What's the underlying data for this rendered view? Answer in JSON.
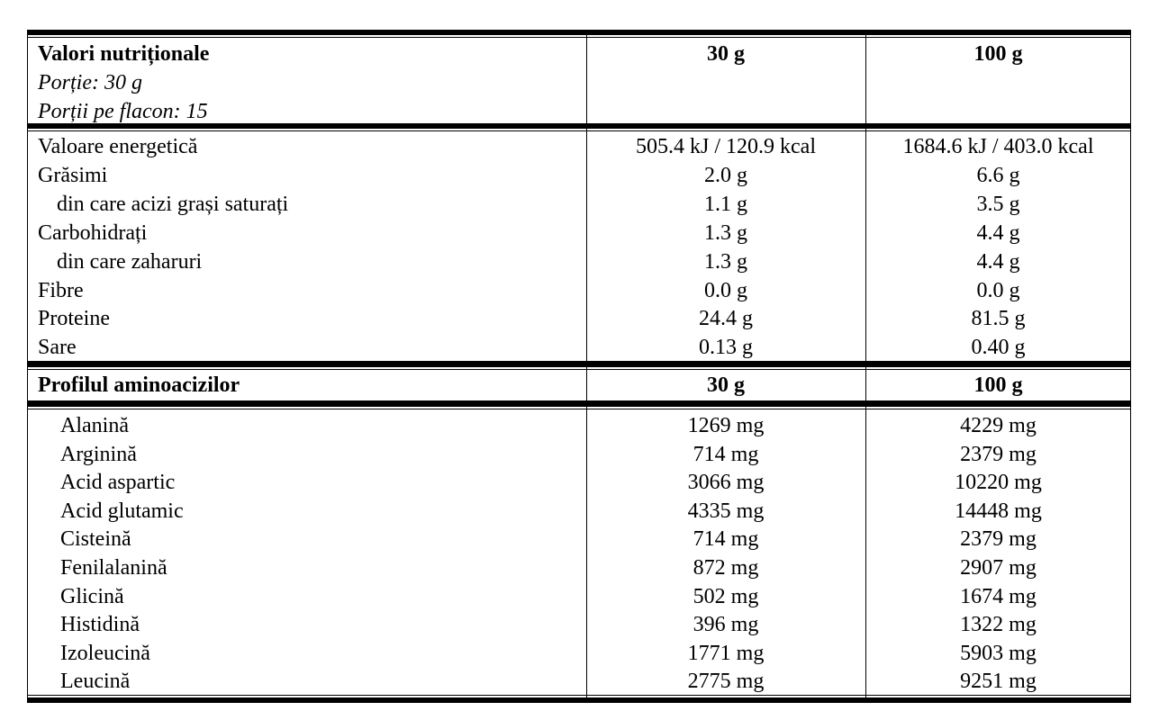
{
  "nutrition": {
    "title": "Valori nutriționale",
    "serving": "Porție: 30 g",
    "servings_per_container": "Porții pe flacon: 15",
    "col_30": "30 g",
    "col_100": "100 g",
    "rows": [
      {
        "name": "Valoare energetică",
        "v30": "505.4 kJ / 120.9 kcal",
        "v100": "1684.6 kJ / 403.0 kcal",
        "indent": false
      },
      {
        "name": "Grăsimi",
        "v30": "2.0 g",
        "v100": "6.6 g",
        "indent": false
      },
      {
        "name": "din care acizi grași saturați",
        "v30": "1.1 g",
        "v100": "3.5 g",
        "indent": true
      },
      {
        "name": "Carbohidrați",
        "v30": "1.3 g",
        "v100": "4.4 g",
        "indent": false
      },
      {
        "name": "din care zaharuri",
        "v30": "1.3 g",
        "v100": "4.4 g",
        "indent": true
      },
      {
        "name": "Fibre",
        "v30": "0.0 g",
        "v100": "0.0 g",
        "indent": false
      },
      {
        "name": "Proteine",
        "v30": "24.4 g",
        "v100": "81.5 g",
        "indent": false
      },
      {
        "name": "Sare",
        "v30": "0.13 g",
        "v100": "0.40 g",
        "indent": false
      }
    ]
  },
  "amino": {
    "title": "Profilul aminoacizilor",
    "col_30": "30 g",
    "col_100": "100 g",
    "rows": [
      {
        "name": "Alanină",
        "v30": "1269 mg",
        "v100": "4229 mg"
      },
      {
        "name": "Arginină",
        "v30": "714 mg",
        "v100": "2379 mg"
      },
      {
        "name": "Acid aspartic",
        "v30": "3066 mg",
        "v100": "10220 mg"
      },
      {
        "name": "Acid glutamic",
        "v30": "4335 mg",
        "v100": "14448 mg"
      },
      {
        "name": "Cisteină",
        "v30": "714 mg",
        "v100": "2379 mg"
      },
      {
        "name": "Fenilalanină",
        "v30": "872 mg",
        "v100": "2907 mg"
      },
      {
        "name": "Glicină",
        "v30": "502 mg",
        "v100": "1674 mg"
      },
      {
        "name": "Histidină",
        "v30": "396 mg",
        "v100": "1322 mg"
      },
      {
        "name": "Izoleucină",
        "v30": "1771 mg",
        "v100": "5903 mg"
      },
      {
        "name": "Leucină",
        "v30": "2775 mg",
        "v100": "9251 mg"
      }
    ]
  }
}
